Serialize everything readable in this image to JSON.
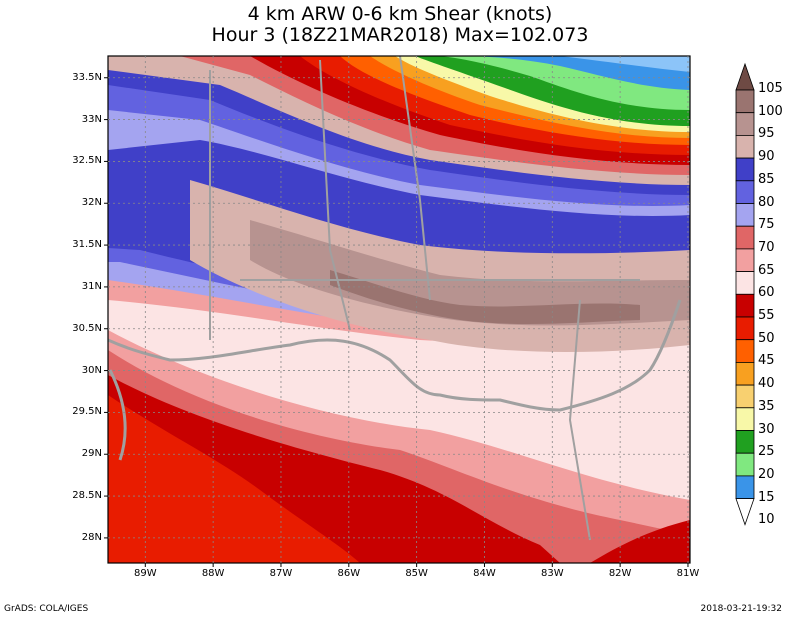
{
  "title": {
    "line1": "4 km ARW 0-6 km Shear (knots)",
    "line2": "Hour 3 (18Z21MAR2018) Max=102.073"
  },
  "map": {
    "lat_labels": [
      "33.5N",
      "33N",
      "32.5N",
      "32N",
      "31.5N",
      "31N",
      "30.5N",
      "30N",
      "29.5N",
      "29N",
      "28.5N",
      "28N"
    ],
    "lon_labels": [
      "89W",
      "88W",
      "87W",
      "86W",
      "85W",
      "84W",
      "83W",
      "82W",
      "81W"
    ],
    "lat_values": [
      33.5,
      33,
      32.5,
      32,
      31.5,
      31,
      30.5,
      30,
      29.5,
      29,
      28.5,
      28
    ],
    "lon_values": [
      -89,
      -88,
      -87,
      -86,
      -85,
      -84,
      -83,
      -82,
      -81
    ]
  },
  "colorbar": {
    "levels": [
      "105",
      "100",
      "95",
      "90",
      "85",
      "80",
      "75",
      "70",
      "65",
      "60",
      "55",
      "50",
      "45",
      "40",
      "35",
      "30",
      "25",
      "20",
      "15",
      "10"
    ],
    "colors": [
      "#6e4a44",
      "#9a7470",
      "#b79390",
      "#d8b3ad",
      "#4040c8",
      "#6262e0",
      "#a4a4f0",
      "#e06666",
      "#f2a0a0",
      "#fce4e4",
      "#c80000",
      "#e81c00",
      "#ff6000",
      "#f8a020",
      "#f8d070",
      "#f8f8a8",
      "#20a020",
      "#80e880",
      "#3a94e8",
      "#8cc4f8"
    ]
  },
  "footer": {
    "left": "GrADS: COLA/IGES",
    "right": "2018-03-21-19:32"
  }
}
